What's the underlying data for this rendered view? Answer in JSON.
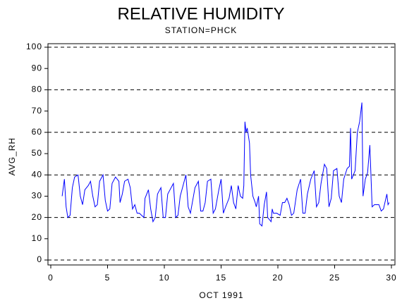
{
  "chart_data": {
    "type": "line",
    "title": "RELATIVE HUMIDITY",
    "subtitle": "STATION=PHCK",
    "y_label": "AVG_RH",
    "x_label": "OCT 1991",
    "xlim": [
      0,
      30
    ],
    "xticks": [
      0,
      5,
      10,
      15,
      20,
      25,
      30
    ],
    "ylim": [
      0,
      100
    ],
    "yticks": [
      0,
      10,
      20,
      30,
      40,
      50,
      60,
      70,
      80,
      90,
      100
    ],
    "ygrid": [
      0,
      20,
      40,
      60,
      80,
      100
    ],
    "series": [
      {
        "color": "#0000ff",
        "x": [
          1.0,
          1.2,
          1.35,
          1.5,
          1.7,
          1.9,
          2.1,
          2.4,
          2.6,
          2.8,
          3.0,
          3.3,
          3.5,
          3.7,
          3.9,
          4.1,
          4.3,
          4.6,
          4.8,
          5.0,
          5.2,
          5.4,
          5.7,
          6.0,
          6.1,
          6.3,
          6.5,
          6.8,
          7.0,
          7.2,
          7.4,
          7.6,
          7.8,
          8.0,
          8.2,
          8.3,
          8.6,
          8.8,
          9.0,
          9.2,
          9.4,
          9.7,
          9.9,
          10.1,
          10.3,
          10.6,
          10.8,
          11.0,
          11.2,
          11.4,
          11.6,
          11.9,
          12.1,
          12.3,
          12.5,
          12.7,
          13.0,
          13.2,
          13.4,
          13.6,
          13.8,
          14.1,
          14.3,
          14.5,
          14.8,
          15.0,
          15.2,
          15.4,
          15.7,
          15.9,
          16.1,
          16.3,
          16.5,
          16.7,
          16.9,
          17.0,
          17.1,
          17.2,
          17.3,
          17.5,
          17.6,
          17.8,
          18.0,
          18.1,
          18.3,
          18.4,
          18.6,
          18.8,
          19.0,
          19.1,
          19.4,
          19.5,
          19.6,
          19.9,
          20.2,
          20.4,
          20.6,
          20.8,
          21.0,
          21.2,
          21.4,
          21.7,
          22.0,
          22.2,
          22.4,
          22.6,
          22.9,
          23.2,
          23.4,
          23.6,
          23.8,
          24.1,
          24.3,
          24.5,
          24.7,
          24.9,
          25.2,
          25.4,
          25.6,
          25.8,
          26.1,
          26.3,
          26.4,
          26.5,
          26.8,
          27.0,
          27.2,
          27.4,
          27.5,
          27.7,
          27.9,
          28.1,
          28.3,
          28.5,
          28.7,
          28.9,
          29.1,
          29.3,
          29.6,
          29.7,
          29.8
        ],
        "values": [
          30,
          38,
          25,
          20,
          21,
          34,
          39,
          40,
          30,
          26,
          33,
          35,
          37,
          30,
          25,
          26,
          37,
          40,
          28,
          23,
          24,
          36,
          39,
          37,
          27,
          31,
          37,
          38,
          34,
          24,
          26,
          22,
          22,
          21,
          20,
          29,
          33,
          24,
          18,
          20,
          31,
          34,
          20,
          20,
          31,
          34,
          36,
          20,
          21,
          30,
          34,
          40,
          25,
          22,
          28,
          34,
          37,
          23,
          23,
          27,
          37,
          38,
          22,
          24,
          33,
          38,
          22,
          25,
          29,
          35,
          27,
          24,
          35,
          30,
          29,
          35,
          65,
          60,
          62,
          55,
          40,
          30,
          27,
          25,
          30,
          17,
          16,
          26,
          32,
          20,
          18,
          24,
          22,
          22,
          21,
          27,
          27,
          29,
          26,
          21,
          22,
          33,
          38,
          22,
          22,
          31,
          38,
          42,
          25,
          27,
          36,
          45,
          43,
          25,
          29,
          42,
          43,
          30,
          27,
          38,
          43,
          44,
          62,
          38,
          42,
          60,
          65,
          74,
          30,
          38,
          41,
          54,
          25,
          26,
          26,
          26,
          23,
          24,
          31,
          26,
          27
        ]
      }
    ]
  }
}
